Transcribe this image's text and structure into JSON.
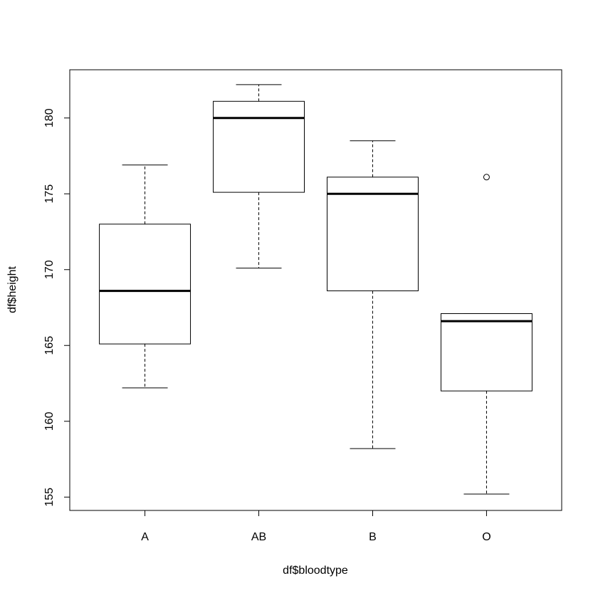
{
  "chart_data": {
    "type": "boxplot",
    "x_label": "df$bloodtype",
    "y_label": "df$height",
    "categories": [
      "A",
      "AB",
      "B",
      "O"
    ],
    "boxes": [
      {
        "whisker_low": 162.2,
        "q1": 165.1,
        "median": 168.6,
        "q3": 173.0,
        "whisker_high": 176.9
      },
      {
        "whisker_low": 170.1,
        "q1": 175.1,
        "median": 180.0,
        "q3": 181.1,
        "whisker_high": 182.2
      },
      {
        "whisker_low": 158.2,
        "q1": 168.6,
        "median": 175.0,
        "q3": 176.1,
        "whisker_high": 178.5
      },
      {
        "whisker_low": 155.2,
        "q1": 162.0,
        "median": 166.6,
        "q3": 167.1,
        "whisker_high": 167.1,
        "outliers": [
          176.1
        ]
      }
    ],
    "ylim": [
      154.12,
      183.18
    ],
    "yticks": [
      155,
      160,
      165,
      170,
      175,
      180
    ],
    "color": "#000000"
  }
}
